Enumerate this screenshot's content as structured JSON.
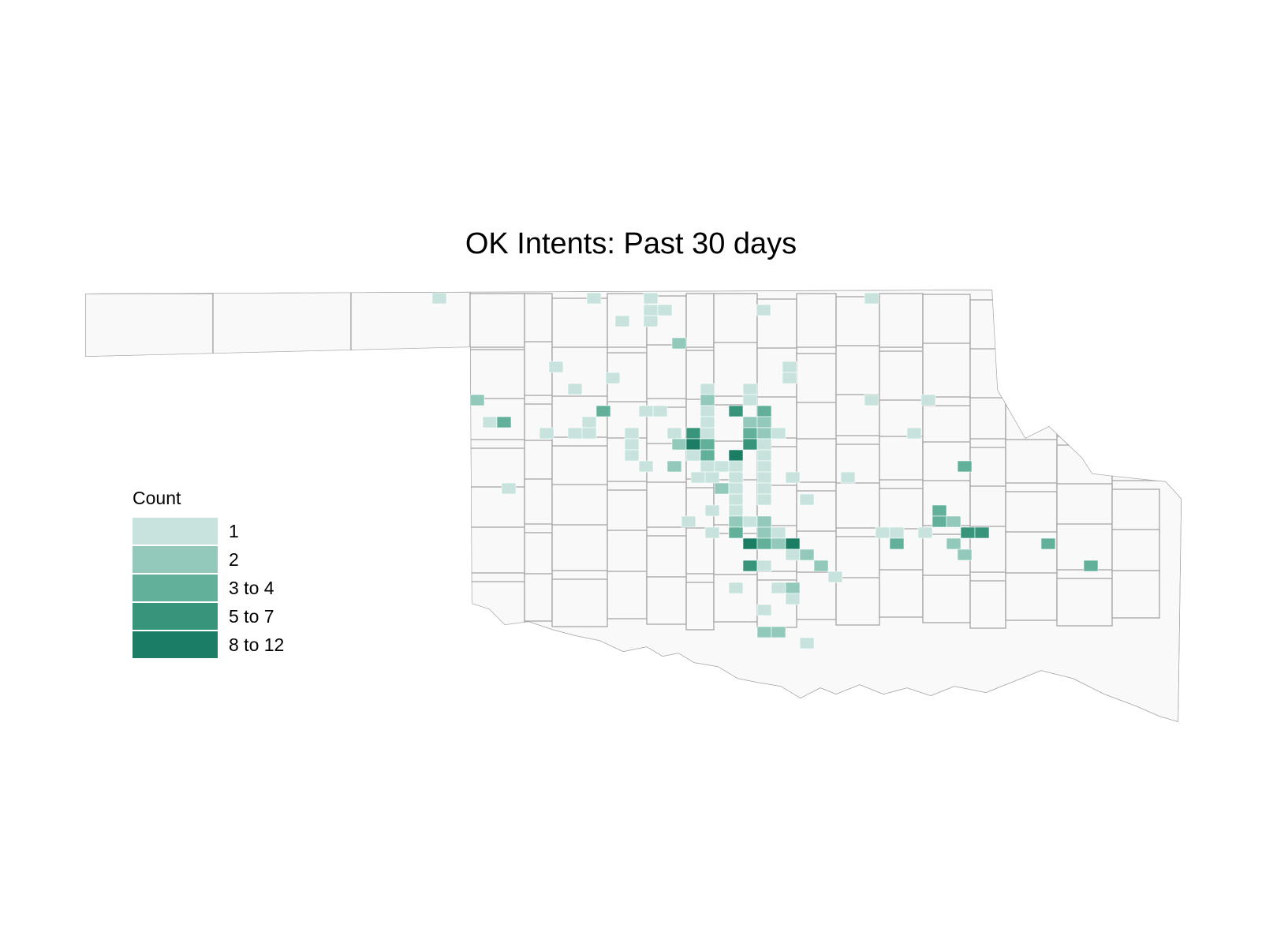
{
  "title": "OK Intents: Past 30 days",
  "legend": {
    "title": "Count",
    "items": [
      {
        "label": "1",
        "color": "#c8e3dd"
      },
      {
        "label": "2",
        "color": "#92c9bb"
      },
      {
        "label": "3 to 4",
        "color": "#63b09a"
      },
      {
        "label": "5 to 7",
        "color": "#38947a"
      },
      {
        "label": "8 to 12",
        "color": "#1b7d64"
      }
    ]
  },
  "colors": {
    "land": "#f9f9f9",
    "border": "#a6a6a6",
    "background": "#ffffff"
  }
}
